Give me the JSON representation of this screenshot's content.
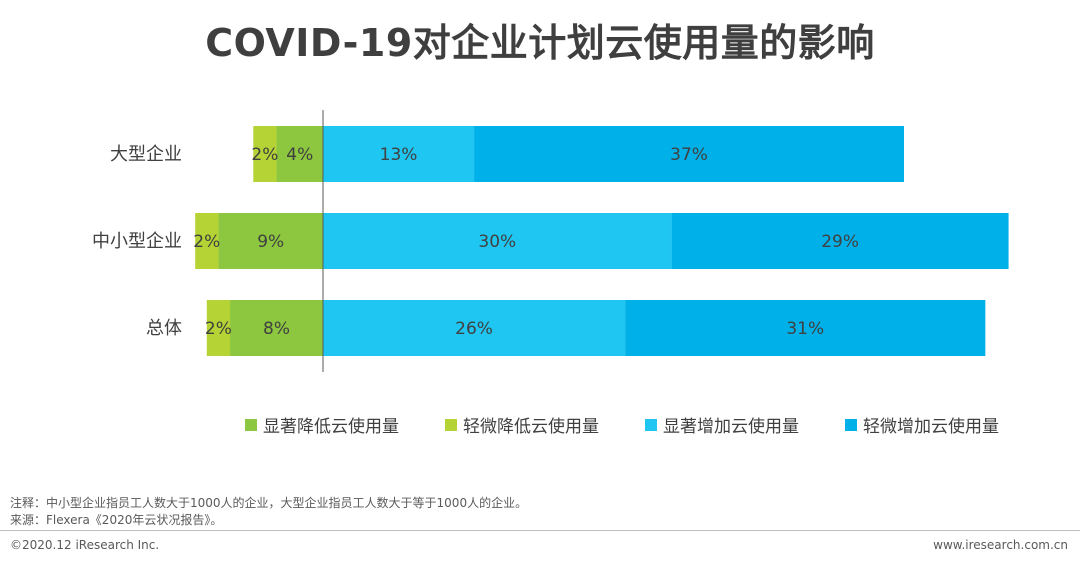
{
  "chart_data": {
    "type": "bar",
    "orientation": "horizontal",
    "stacked": "diverging",
    "title": "COVID-19对企业计划云使用量的影响",
    "categories": [
      "大型企业",
      "中小型企业",
      "总体"
    ],
    "series": [
      {
        "name": "显著降低云使用量",
        "side": "negative",
        "color": "#8dc63f",
        "values": [
          4,
          9,
          8
        ],
        "labels": [
          "4%",
          "9%",
          "8%"
        ]
      },
      {
        "name": "轻微降低云使用量",
        "side": "negative",
        "color": "#b5d334",
        "values": [
          2,
          2,
          2
        ],
        "labels": [
          "2%",
          "2%",
          "2%"
        ]
      },
      {
        "name": "显著增加云使用量",
        "side": "positive",
        "color": "#1fc6f1",
        "values": [
          13,
          30,
          26
        ],
        "labels": [
          "13%",
          "30%",
          "26%"
        ]
      },
      {
        "name": "轻微增加云使用量",
        "side": "positive",
        "color": "#00b0e8",
        "values": [
          37,
          29,
          31
        ],
        "labels": [
          "37%",
          "29%",
          "31%"
        ]
      }
    ],
    "legend_order": [
      "显著降低云使用量",
      "轻微降低云使用量",
      "显著增加云使用量",
      "轻微增加云使用量"
    ],
    "legend_position": "bottom",
    "grid": false
  },
  "notes": {
    "note": "注释：中小型企业指员工人数大于1000人的企业，大型企业指员工人数大于等于1000人的企业。",
    "source": "来源：Flexera《2020年云状况报告》。"
  },
  "footer": {
    "copyright": "©2020.12 iResearch Inc.",
    "website": "www.iresearch.com.cn"
  }
}
